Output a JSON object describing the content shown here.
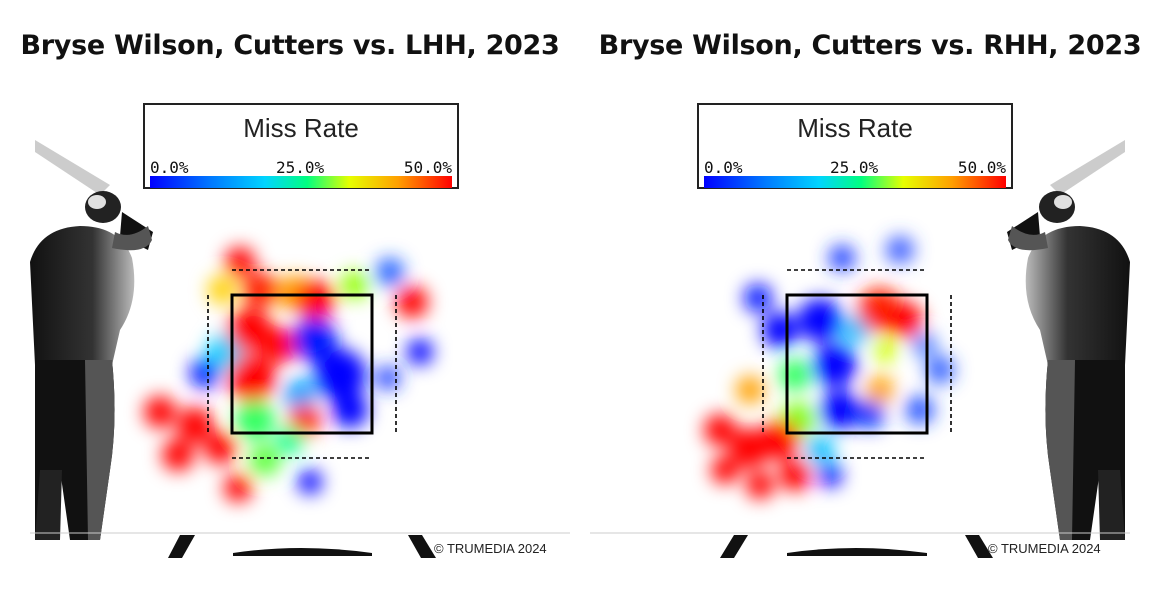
{
  "chart_data": [
    {
      "type": "heatmap",
      "title": "Bryse Wilson, Cutters vs. LHH, 2023",
      "legend_title": "Miss Rate",
      "legend_ticks": [
        "0.0%",
        "25.0%",
        "50.0%"
      ],
      "color_range": [
        0,
        50
      ],
      "batter_side": "left",
      "watermark": "© TRUMEDIA 2024",
      "colors": {
        "low": "#0000ff",
        "mid": "#00ff80",
        "high": "#ff0000"
      }
    },
    {
      "type": "heatmap",
      "title": "Bryse Wilson, Cutters vs. RHH, 2023",
      "legend_title": "Miss Rate",
      "legend_ticks": [
        "0.0%",
        "25.0%",
        "50.0%"
      ],
      "color_range": [
        0,
        50
      ],
      "batter_side": "right",
      "watermark": "© TRUMEDIA 2024",
      "colors": {
        "low": "#0000ff",
        "mid": "#00ff80",
        "high": "#ff0000"
      }
    }
  ]
}
